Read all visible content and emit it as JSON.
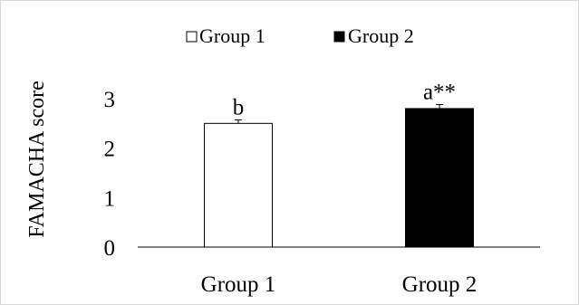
{
  "chart_data": {
    "type": "bar",
    "categories": [
      "Group 1",
      "Group 2"
    ],
    "values": [
      2.5,
      2.8
    ],
    "errors": [
      0.07,
      0.08
    ],
    "data_labels": [
      "b",
      "a**"
    ],
    "bar_colors": [
      "#ffffff",
      "#000000"
    ],
    "bar_edge_color": "#000000",
    "legend": {
      "placement": "top",
      "entries": [
        {
          "label": "Group 1",
          "color": "#ffffff"
        },
        {
          "label": "Group 2",
          "color": "#000000"
        }
      ]
    },
    "title": "",
    "xlabel": "",
    "ylabel": "FAMACHA score",
    "ylim": [
      0,
      3
    ],
    "yticks": [
      0,
      1,
      2,
      3
    ],
    "grid": false
  }
}
